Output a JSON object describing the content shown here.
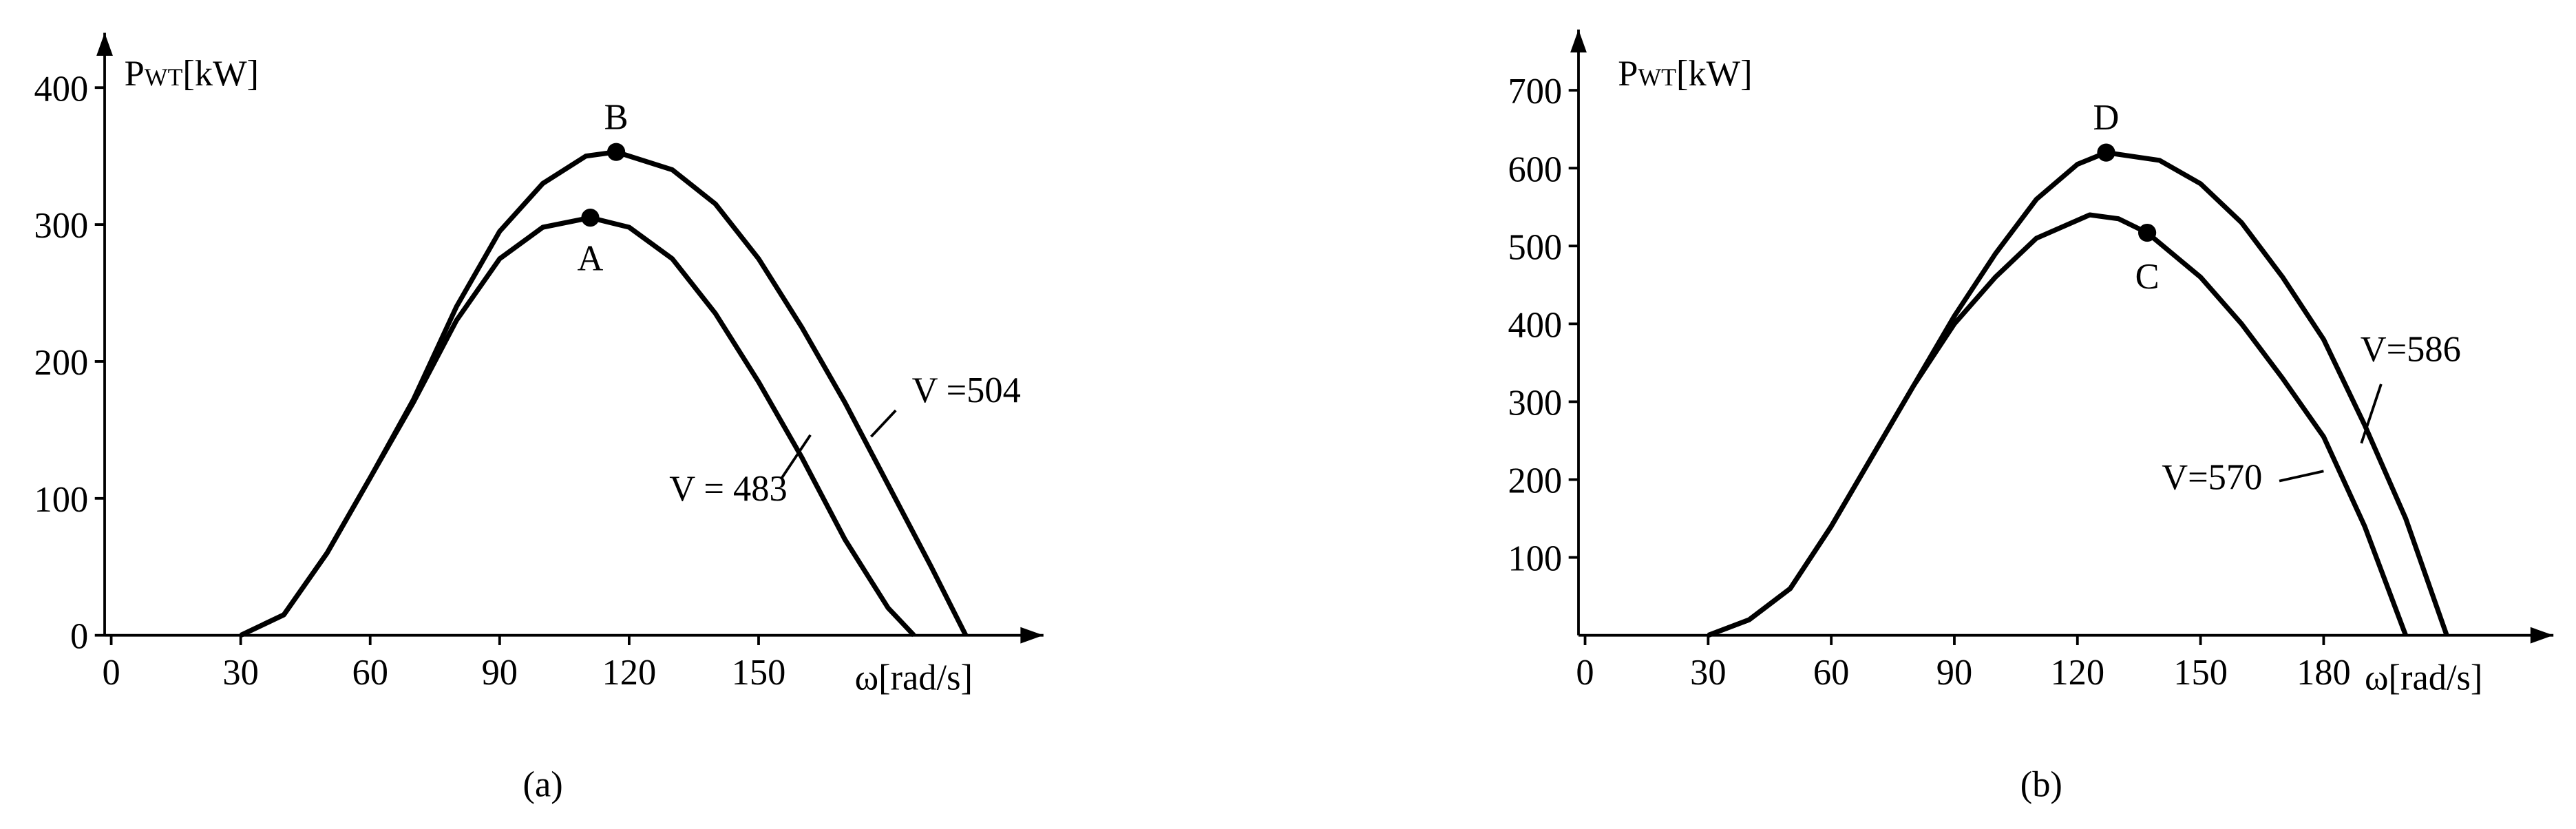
{
  "chart_data": [
    {
      "type": "line",
      "caption": "(a)",
      "y_label": {
        "main": "P",
        "sub": "WT",
        "unit": "[kW]"
      },
      "x_label": "ω[rad/s]",
      "xlim": [
        0,
        216
      ],
      "ylim": [
        0,
        440
      ],
      "xticks": [
        0,
        30,
        60,
        90,
        120,
        150
      ],
      "yticks": [
        0,
        100,
        200,
        300,
        400
      ],
      "series": [
        {
          "name": "V = 483",
          "color": "#000000",
          "x": [
            30,
            40,
            50,
            60,
            70,
            80,
            90,
            100,
            111,
            120,
            130,
            140,
            150,
            160,
            170,
            180,
            186
          ],
          "values": [
            0,
            15,
            60,
            115,
            170,
            230,
            275,
            298,
            305,
            298,
            275,
            235,
            185,
            130,
            70,
            20,
            0
          ]
        },
        {
          "name": "V =504",
          "color": "#000000",
          "x": [
            30,
            40,
            50,
            60,
            70,
            80,
            90,
            100,
            110,
            117,
            130,
            140,
            150,
            160,
            170,
            180,
            190,
            198
          ],
          "values": [
            0,
            15,
            60,
            115,
            172,
            240,
            295,
            330,
            350,
            353,
            340,
            315,
            275,
            225,
            170,
            110,
            50,
            0
          ]
        }
      ],
      "points": [
        {
          "name": "A",
          "x": 111,
          "y": 305
        },
        {
          "name": "B",
          "x": 117,
          "y": 353
        }
      ]
    },
    {
      "type": "line",
      "caption": "(b)",
      "y_label": {
        "main": "P",
        "sub": "WT",
        "unit": "[kW]"
      },
      "x_label": "ω[rad/s]",
      "xlim": [
        0,
        236
      ],
      "ylim": [
        0,
        778
      ],
      "xticks": [
        0,
        30,
        60,
        90,
        120,
        150,
        180
      ],
      "yticks": [
        100,
        200,
        300,
        400,
        500,
        600,
        700
      ],
      "series": [
        {
          "name": "V=570",
          "color": "#000000",
          "x": [
            30,
            40,
            50,
            60,
            70,
            80,
            90,
            100,
            110,
            123,
            130,
            137,
            150,
            160,
            170,
            180,
            190,
            200
          ],
          "values": [
            0,
            20,
            60,
            140,
            230,
            320,
            400,
            460,
            510,
            540,
            535,
            517,
            460,
            400,
            330,
            255,
            140,
            0
          ]
        },
        {
          "name": "V=586",
          "color": "#000000",
          "x": [
            30,
            40,
            50,
            60,
            70,
            80,
            90,
            100,
            110,
            120,
            127,
            140,
            150,
            160,
            170,
            180,
            190,
            200,
            210
          ],
          "values": [
            0,
            20,
            60,
            140,
            230,
            320,
            410,
            490,
            560,
            605,
            620,
            610,
            580,
            530,
            460,
            380,
            270,
            150,
            0
          ]
        }
      ],
      "points": [
        {
          "name": "C",
          "x": 137,
          "y": 517
        },
        {
          "name": "D",
          "x": 127,
          "y": 620
        }
      ]
    }
  ]
}
